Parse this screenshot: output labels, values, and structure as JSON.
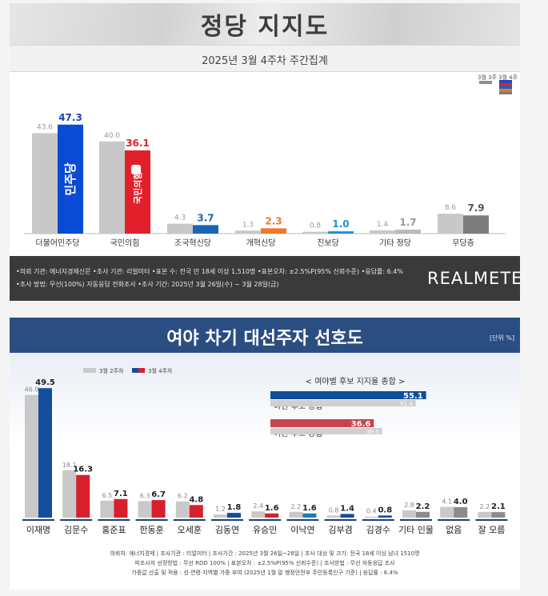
{
  "panel1": {
    "title": "정당 지지도",
    "subtitle": "2025년 3월 4주차 주간집계",
    "legend_prev": "3월 3주",
    "legend_curr": "3월 4주",
    "footer_line1": "•의뢰 기관: 에너지경제신문  •조사 기관: 리얼미터  •표본 수: 전국 만 18세 이상 1,510명  •표본오차: ±2.5%P(95% 신뢰수준)  •응답률: 6.4%",
    "footer_line2": "•조사 방법: 무선(100%) 자동응답 전화조사  •조사 기간: 2025년 3월 26일(수) ~ 3월 28일(금)",
    "brand": "REALMETER",
    "logo_dem": "민주당",
    "logo_ppp": "국민의힘"
  },
  "panel2": {
    "title": "여야 차기 대선주자 선호도",
    "unit": "[단위 %]",
    "legend_prev": "3월 2주차",
    "legend_curr": "3월 4주차",
    "inset_title": "< 여야별 후보 지지율 종합 >",
    "footer_line1": "의뢰처: 에너지경제 | 조사기관 : 리얼미터 | 조사기간 : 2025년 3월 26일~28일 | 조사 대상 및 크기: 전국 18세 이상 남녀 1510명",
    "footer_line2": "피조사자 선정방법 : 무선 RDD 100% | 표본오차 : ±2.5%P(95% 신뢰수준) | 조사방법 : 무선 자동응답 조사",
    "footer_line3": "가중값 산출 및 적용 : 성·연령·지역별 가중 부여 (2025년 1월 말 행정안전부 주민등록인구 기준) | 응답률 : 6.4%"
  },
  "chart_data": [
    {
      "type": "bar",
      "title": "정당 지지도",
      "subtitle": "2025년 3월 4주차 주간집계",
      "categories": [
        "더불어민주당",
        "국민의힘",
        "조국혁신당",
        "개혁신당",
        "진보당",
        "기타 정당",
        "무당층"
      ],
      "series": [
        {
          "name": "3월 3주",
          "values": [
            43.6,
            40.0,
            4.3,
            1.3,
            0.8,
            1.4,
            8.6
          ],
          "labels": [
            "43.6",
            "40.0",
            "4.3",
            "1.3",
            "0.8",
            "1.4",
            "8.6"
          ]
        },
        {
          "name": "3월 4주",
          "values": [
            47.3,
            36.1,
            3.7,
            2.3,
            1.0,
            1.7,
            7.9
          ],
          "labels": [
            "47.3",
            "36.1",
            "3.7",
            "2.3",
            "1.0",
            "1.7",
            "7.9"
          ]
        }
      ],
      "colors_prev": "#c8c8c8",
      "colors_curr": [
        "#0a4bd6",
        "#e2202c",
        "#1a65b5",
        "#f07a28",
        "#1f8ed4",
        "#b9b9b9",
        "#7d7d7d"
      ],
      "label_colors_curr": [
        "#1f3fbf",
        "#e2202c",
        "#1a65b5",
        "#f07a28",
        "#1f8ed4",
        "#999999",
        "#555555"
      ],
      "ylim": [
        0,
        50
      ]
    },
    {
      "type": "bar",
      "title": "여야 차기 대선주자 선호도",
      "categories": [
        "이재명",
        "김문수",
        "홍준표",
        "한동훈",
        "오세훈",
        "김동연",
        "유승민",
        "이낙연",
        "김부겸",
        "김경수",
        "기타 인물",
        "없음",
        "잘 모름"
      ],
      "series": [
        {
          "name": "3월 2주차",
          "values": [
            46.9,
            18.1,
            6.5,
            6.3,
            6.2,
            1.2,
            2.4,
            2.2,
            0.8,
            0.4,
            2.8,
            4.1,
            2.2
          ],
          "labels": [
            "46.9",
            "18.1",
            "6.5",
            "6.3",
            "6.2",
            "1.2",
            "2.4",
            "2.2",
            "0.8",
            "0.4",
            "2.8",
            "4.1",
            "2.2"
          ]
        },
        {
          "name": "3월 4주차",
          "values": [
            49.5,
            16.3,
            7.1,
            6.7,
            4.8,
            1.8,
            1.6,
            1.6,
            1.4,
            0.8,
            2.2,
            4.0,
            2.1
          ],
          "labels": [
            "49.5",
            "16.3",
            "7.1",
            "6.7",
            "4.8",
            "1.8",
            "1.6",
            "1.6",
            "1.4",
            "0.8",
            "2.2",
            "4.0",
            "2.1"
          ]
        }
      ],
      "colors_prev": "#c9c9c9",
      "colors_curr": [
        "#124e9c",
        "#d6202d",
        "#d6202d",
        "#d6202d",
        "#d6202d",
        "#124e9c",
        "#d6202d",
        "#1a7fb5",
        "#124e9c",
        "#124e9c",
        "#8c8c8c",
        "#8c8c8c",
        "#8c8c8c"
      ],
      "ylim": [
        0,
        52
      ]
    },
    {
      "type": "bar",
      "orientation": "horizontal",
      "title": "< 여야별 후보 지지율 종합 >",
      "categories": [
        "야권 후보 총합",
        "여권 후보 총합"
      ],
      "series": [
        {
          "name": "3월 4주차",
          "values": [
            55.1,
            36.6
          ],
          "labels": [
            "55.1",
            "36.6"
          ]
        },
        {
          "name": "3월 2주차",
          "values": [
            51.4,
            39.5
          ],
          "labels": [
            "51.4",
            "39.5"
          ]
        }
      ],
      "colors_curr": [
        "#124e9c",
        "#c9444d"
      ],
      "colors_prev": "#cfcfcf",
      "xlim": [
        0,
        60
      ]
    }
  ]
}
